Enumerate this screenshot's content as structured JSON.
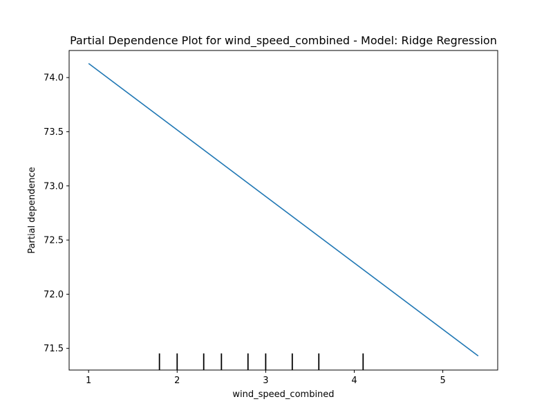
{
  "chart_data": {
    "type": "line",
    "title": "Partial Dependence Plot for wind_speed_combined - Model: Ridge Regression",
    "xlabel": "wind_speed_combined",
    "ylabel": "Partial dependence",
    "xlim": [
      0.78,
      5.62
    ],
    "ylim": [
      71.3,
      74.25
    ],
    "xticks": [
      1,
      2,
      3,
      4,
      5
    ],
    "xtick_labels": [
      "1",
      "2",
      "3",
      "4",
      "5"
    ],
    "yticks": [
      71.5,
      72.0,
      72.5,
      73.0,
      73.5,
      74.0
    ],
    "ytick_labels": [
      "71.5",
      "72.0",
      "72.5",
      "73.0",
      "73.5",
      "74.0"
    ],
    "grid": false,
    "series": [
      {
        "x": [
          1.0,
          5.4
        ],
        "y": [
          74.13,
          71.43
        ],
        "color": "#1f77b4"
      }
    ],
    "deciles": {
      "x": [
        1.8,
        2.0,
        2.3,
        2.5,
        2.8,
        3.0,
        3.3,
        3.6,
        4.1
      ],
      "color": "#000000"
    }
  }
}
